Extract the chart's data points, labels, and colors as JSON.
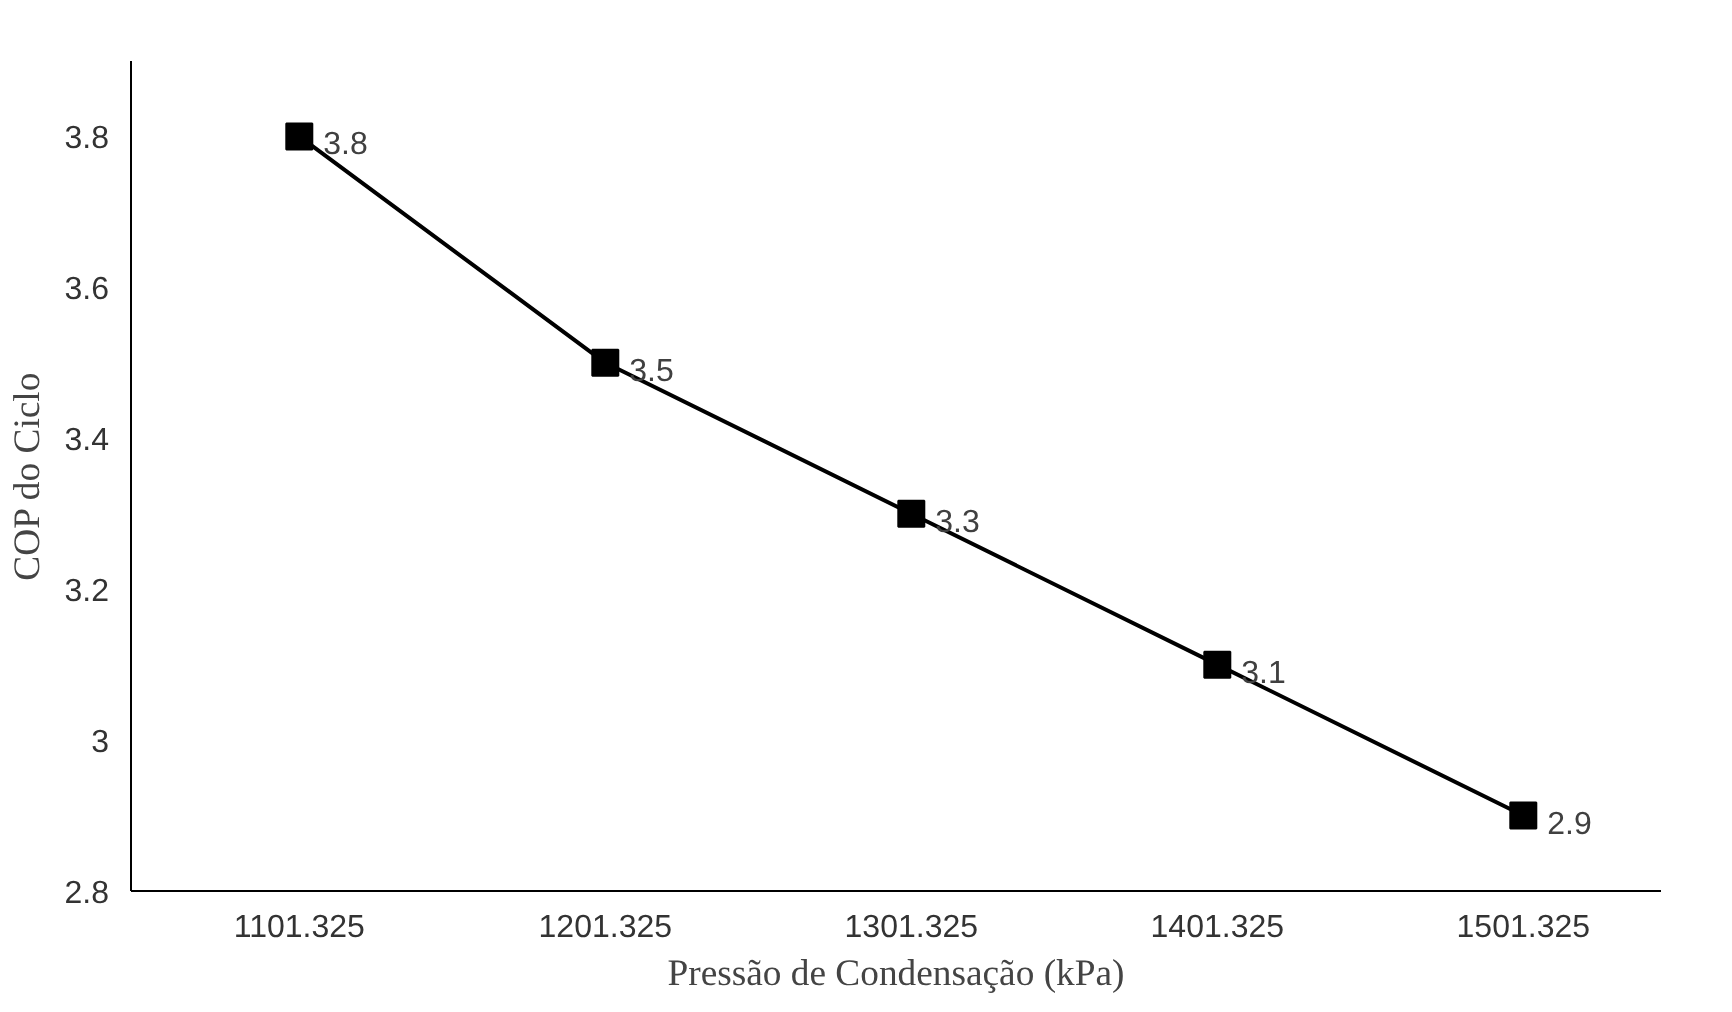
{
  "chart_data": {
    "type": "line",
    "xlabel": "Pressão de Condensação (kPa)",
    "ylabel": "COP do Ciclo",
    "categories": [
      "1101.325",
      "1201.325",
      "1301.325",
      "1401.325",
      "1501.325"
    ],
    "series": [
      {
        "color": "#000000",
        "values": [
          3.8,
          3.5,
          3.3,
          3.1,
          2.9
        ]
      }
    ],
    "ylim": [
      2.8,
      3.9
    ],
    "yticks": [
      2.8,
      {
        "value": 3.0,
        "label": "3"
      },
      3.2,
      3.4,
      3.6,
      3.8
    ],
    "grid": false,
    "marker": "square",
    "line_style": "solid",
    "data_labels": true
  }
}
